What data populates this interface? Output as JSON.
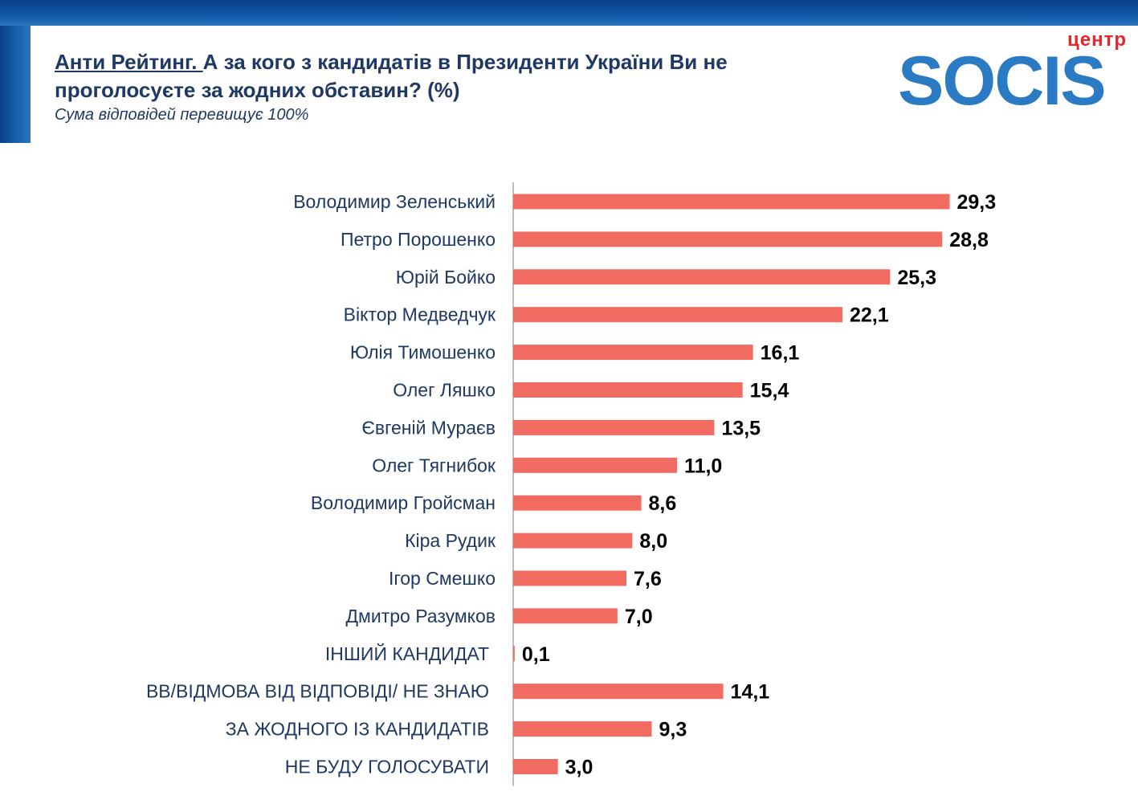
{
  "header": {
    "title_prefix": "Анти Рейтинг. ",
    "title_rest": "А за кого з кандидатів в Президенти України Ви не проголосуєте за жодних обставин? (%)",
    "subtitle": "Сума відповідей перевищує 100%"
  },
  "logo": {
    "small_text": "центр",
    "big_text": "SOCIS"
  },
  "colors": {
    "bar": "#f26b61",
    "label": "#1f3864",
    "value": "#000000",
    "axis": "#a6a6a6"
  },
  "chart_data": {
    "type": "bar",
    "orientation": "horizontal",
    "categories": [
      "Володимир Зеленський",
      "Петро Порошенко",
      "Юрій Бойко",
      "Віктор Медведчук",
      "Юлія Тимошенко",
      "Олег Ляшко",
      "Євгеній Мураєв",
      "Олег Тягнибок",
      "Володимир Гройсман",
      "Кіра Рудик",
      "Ігор Смешко",
      "Дмитро Разумков",
      "ІНШИЙ КАНДИДАТ",
      "ВВ/ВІДМОВА ВІД ВІДПОВІДІ/ НЕ ЗНАЮ",
      "ЗА ЖОДНОГО ІЗ КАНДИДАТІВ",
      "НЕ БУДУ ГОЛОСУВАТИ"
    ],
    "values": [
      29.3,
      28.8,
      25.3,
      22.1,
      16.1,
      15.4,
      13.5,
      11.0,
      8.6,
      8.0,
      7.6,
      7.0,
      0.1,
      14.1,
      9.3,
      3.0
    ],
    "value_labels": [
      "29,3",
      "28,8",
      "25,3",
      "22,1",
      "16,1",
      "15,4",
      "13,5",
      "11,0",
      "8,6",
      "8,0",
      "7,6",
      "7,0",
      "0,1",
      "14,1",
      "9,3",
      "3,0"
    ],
    "xlim": [
      0,
      30
    ],
    "grid": false,
    "legend": "none"
  }
}
